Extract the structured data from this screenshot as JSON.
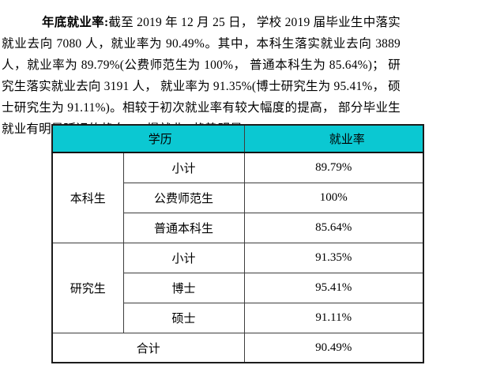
{
  "paragraph": {
    "lead": "年底就业率:",
    "text": "截至 2019 年 12 月 25 日， 学校 2019 届毕业生中落实就业去向 7080 人，就业率为 90.49%。其中，本科生落实就业去向 3889 人，就业率为 89.79%(公费师范生为 100%， 普通本科生为 85.64%)； 研究生落实就业去向 3191 人， 就业率为 91.35%(博士研究生为 95.41%， 硕士研究生为 91.11%)。相较于初次就业率有较大幅度的提高， 部分毕业生就业有明显延迟的趋向， “慢就业” 趋势明显。"
  },
  "table": {
    "header": {
      "education": "学历",
      "rate": "就业率"
    },
    "header_bg": "#0bc8d2",
    "groups": [
      {
        "name": "本科生",
        "rows": [
          {
            "label": "小计",
            "value": "89.79%"
          },
          {
            "label": "公费师范生",
            "value": "100%"
          },
          {
            "label": "普通本科生",
            "value": "85.64%"
          }
        ]
      },
      {
        "name": "研究生",
        "rows": [
          {
            "label": "小计",
            "value": "91.35%"
          },
          {
            "label": "博士",
            "value": "95.41%"
          },
          {
            "label": "硕士",
            "value": "91.11%"
          }
        ]
      }
    ],
    "total": {
      "label": "合计",
      "value": "90.49%"
    }
  }
}
